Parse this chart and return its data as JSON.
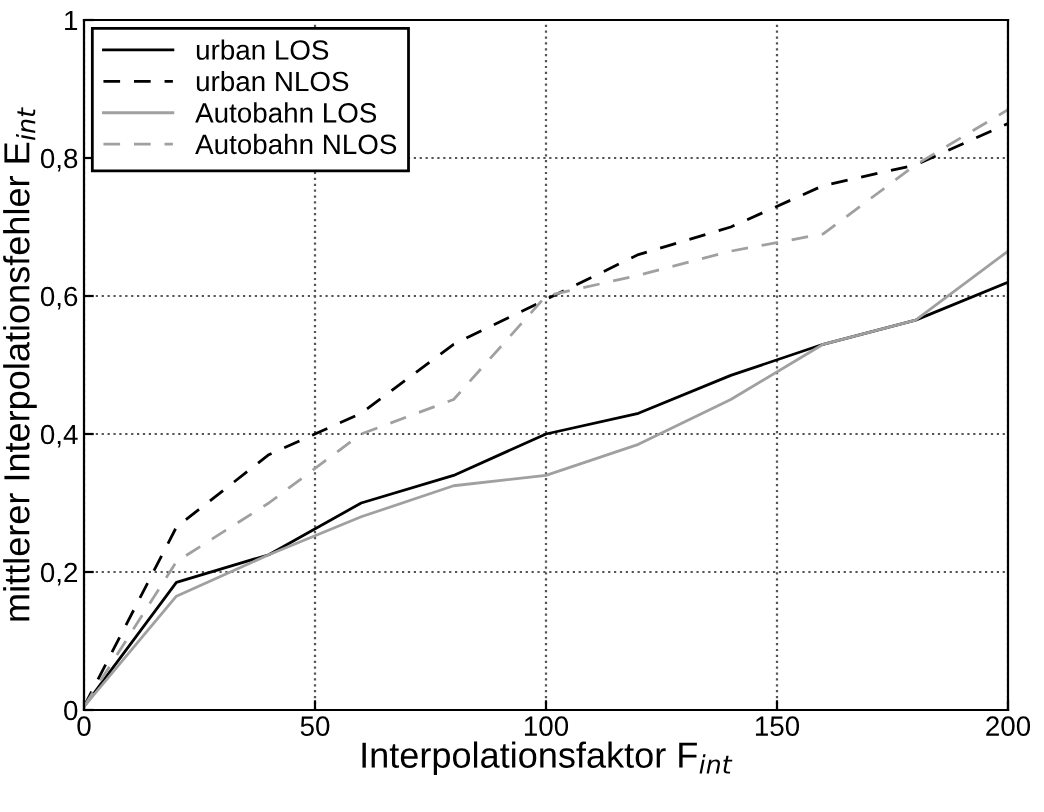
{
  "chart_data": {
    "type": "line",
    "xlabel": "Interpolationsfaktor F$_{int}$",
    "ylabel": "mittlerer Interpolationsfehler E$_{int}$",
    "x": [
      0,
      20,
      40,
      60,
      80,
      100,
      120,
      140,
      160,
      180,
      200
    ],
    "series": [
      {
        "name": "urban LOS",
        "color": "#000000",
        "line_style": "solid",
        "values": [
          0.005,
          0.185,
          0.225,
          0.3,
          0.34,
          0.4,
          0.43,
          0.485,
          0.53,
          0.565,
          0.62
        ]
      },
      {
        "name": "urban NLOS",
        "color": "#000000",
        "line_style": "dashed",
        "values": [
          0.005,
          0.265,
          0.37,
          0.43,
          0.53,
          0.595,
          0.66,
          0.7,
          0.76,
          0.79,
          0.85
        ]
      },
      {
        "name": "Autobahn LOS",
        "color": "#a0a0a0",
        "line_style": "solid",
        "values": [
          0.005,
          0.165,
          0.225,
          0.28,
          0.325,
          0.34,
          0.385,
          0.45,
          0.53,
          0.565,
          0.665
        ]
      },
      {
        "name": "Autobahn NLOS",
        "color": "#a0a0a0",
        "line_style": "dashed",
        "values": [
          0.005,
          0.215,
          0.3,
          0.4,
          0.45,
          0.6,
          0.63,
          0.665,
          0.69,
          0.79,
          0.87
        ]
      }
    ],
    "xlim": [
      0,
      200
    ],
    "xticks": [
      0,
      50,
      100,
      150,
      200
    ],
    "ylim": [
      0,
      1
    ],
    "yticks": [
      0,
      {
        "value": 0.2,
        "label": "0,2"
      },
      {
        "value": 0.4,
        "label": "0,4"
      },
      {
        "value": 0.6,
        "label": "0,6"
      },
      {
        "value": 0.8,
        "label": "0,8"
      },
      1
    ],
    "grid": true,
    "legend": "top left",
    "marker": "none"
  }
}
